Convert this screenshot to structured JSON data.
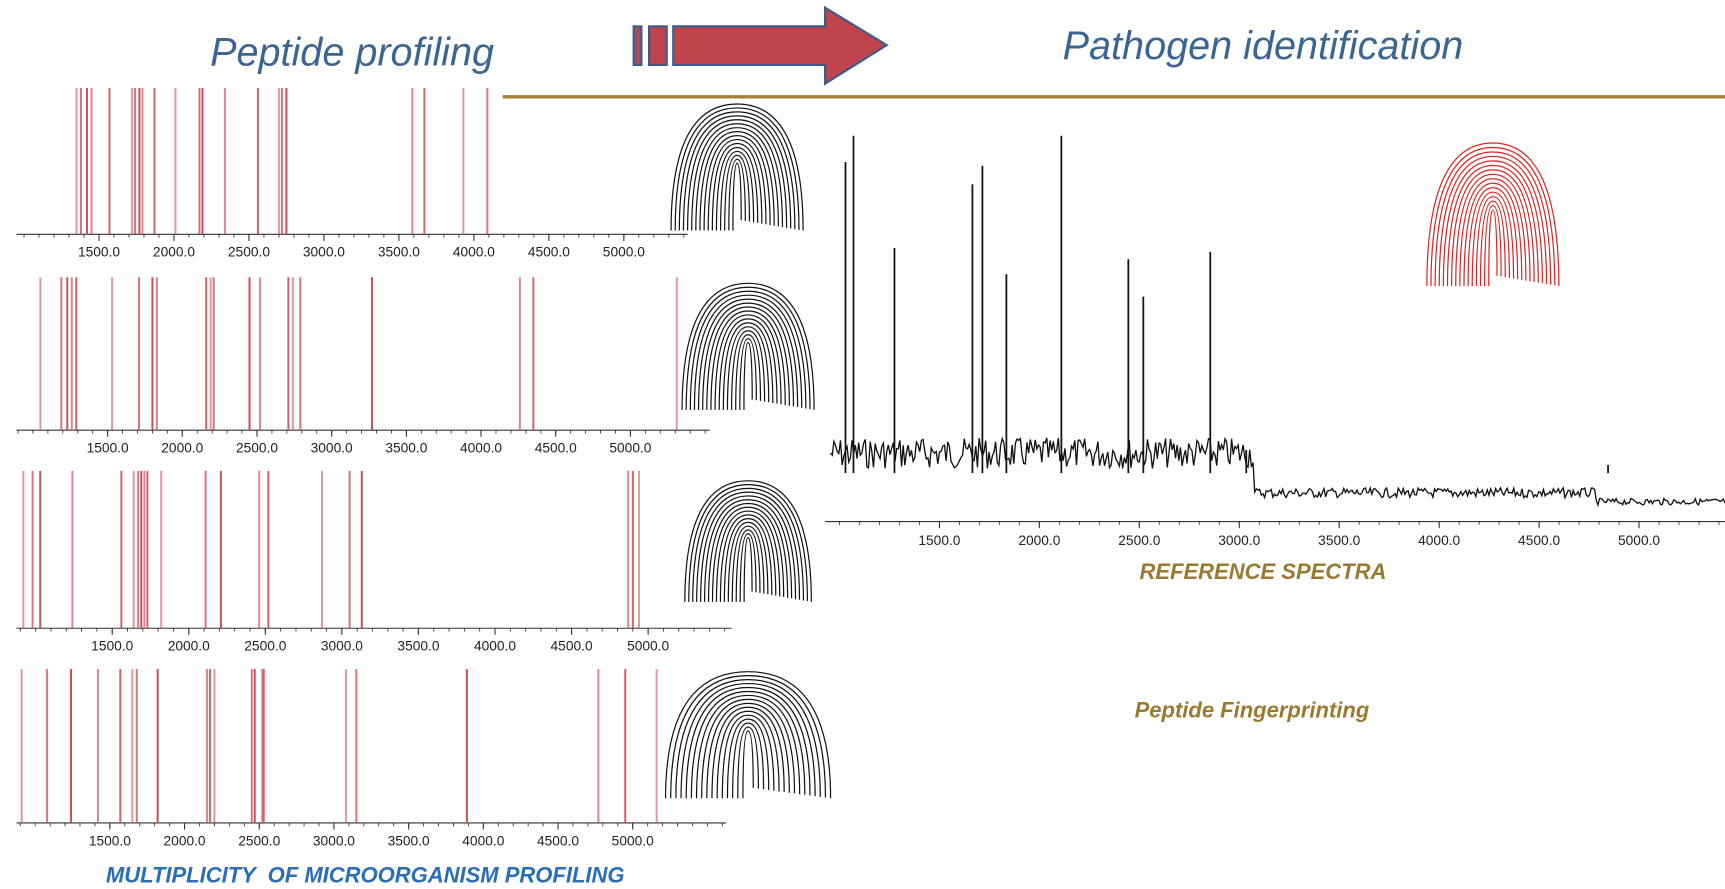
{
  "header": {
    "left_title": "Peptide profiling",
    "right_title": "Pathogen identification"
  },
  "profiles": [
    {
      "xlim": [
        950,
        5425
      ],
      "xticks": [
        {
          "value": 1500,
          "label": "1500.0"
        },
        {
          "value": 2000,
          "label": "2000.0"
        },
        {
          "value": 2500,
          "label": "2500.0"
        },
        {
          "value": 3000,
          "label": "3000.0"
        },
        {
          "value": 3500,
          "label": "3500.0"
        },
        {
          "value": 4000,
          "label": "4000.0"
        },
        {
          "value": 4500,
          "label": "4500.0"
        },
        {
          "value": 5000,
          "label": "5000.0"
        }
      ],
      "peaks": [
        1350,
        1380,
        1420,
        1450,
        1570,
        1720,
        1740,
        1770,
        1790,
        1870,
        2010,
        2170,
        2190,
        2340,
        2560,
        2700,
        2720,
        2750,
        3590,
        3670,
        3930,
        4090
      ]
    },
    {
      "xlim": [
        890,
        5530
      ],
      "xticks": [
        {
          "value": 1500,
          "label": "1500.0"
        },
        {
          "value": 2000,
          "label": "2000.0"
        },
        {
          "value": 2500,
          "label": "2500.0"
        },
        {
          "value": 3000,
          "label": "3000.0"
        },
        {
          "value": 3500,
          "label": "3500.0"
        },
        {
          "value": 4000,
          "label": "4000.0"
        },
        {
          "value": 4500,
          "label": "4500.0"
        },
        {
          "value": 5000,
          "label": "5000.0"
        }
      ],
      "peaks": [
        1050,
        1190,
        1230,
        1260,
        1290,
        1530,
        1710,
        1800,
        1830,
        2160,
        2190,
        2210,
        2450,
        2520,
        2710,
        2740,
        2790,
        3270,
        4260,
        4350,
        5310
      ]
    },
    {
      "xlim": [
        875,
        5545
      ],
      "xticks": [
        {
          "value": 1500,
          "label": "1500.0"
        },
        {
          "value": 2000,
          "label": "2000.0"
        },
        {
          "value": 2500,
          "label": "2500.0"
        },
        {
          "value": 3000,
          "label": "3000.0"
        },
        {
          "value": 3500,
          "label": "3500.0"
        },
        {
          "value": 4000,
          "label": "4000.0"
        },
        {
          "value": 4500,
          "label": "4500.0"
        },
        {
          "value": 5000,
          "label": "5000.0"
        }
      ],
      "peaks": [
        920,
        980,
        1030,
        1240,
        1560,
        1640,
        1670,
        1690,
        1710,
        1730,
        1820,
        2110,
        2210,
        2460,
        2520,
        2870,
        3050,
        3130,
        4870,
        4900,
        4940
      ]
    },
    {
      "xlim": [
        875,
        5625
      ],
      "xticks": [
        {
          "value": 1500,
          "label": "1500.0"
        },
        {
          "value": 2000,
          "label": "2000.0"
        },
        {
          "value": 2500,
          "label": "2500.0"
        },
        {
          "value": 3000,
          "label": "3000.0"
        },
        {
          "value": 3500,
          "label": "3500.0"
        },
        {
          "value": 4000,
          "label": "4000.0"
        },
        {
          "value": 4500,
          "label": "4500.0"
        },
        {
          "value": 5000,
          "label": "5000.0"
        }
      ],
      "peaks": [
        910,
        1080,
        1240,
        1420,
        1570,
        1650,
        1680,
        1820,
        2150,
        2170,
        2200,
        2450,
        2470,
        2520,
        2530,
        3080,
        3150,
        3890,
        4770,
        4950,
        5160
      ]
    }
  ],
  "reference": {
    "caption": "REFERENCE SPECTRA",
    "xlim": [
      928,
      5430
    ],
    "ylim": [
      0,
      100
    ],
    "xticks": [
      {
        "value": 1500,
        "label": "1500.0"
      },
      {
        "value": 2000,
        "label": "2000.0"
      },
      {
        "value": 2500,
        "label": "2500.0"
      },
      {
        "value": 3000,
        "label": "3000.0"
      },
      {
        "value": 3500,
        "label": "3500.0"
      },
      {
        "value": 4000,
        "label": "4000.0"
      },
      {
        "value": 4500,
        "label": "4500.0"
      },
      {
        "value": 5000,
        "label": "5000.0"
      }
    ],
    "x": [
      1030,
      1070,
      1275,
      1665,
      1715,
      1835,
      2110,
      2445,
      2520,
      2855,
      3035,
      4845
    ],
    "values": [
      92,
      99,
      69,
      86,
      91,
      62,
      99,
      66,
      56,
      68,
      15,
      11
    ]
  },
  "footer_left": "MULTIPLICITY  OF MICROORGANISM PROFILING",
  "fingerprinting_label": "Peptide Fingerprinting"
}
